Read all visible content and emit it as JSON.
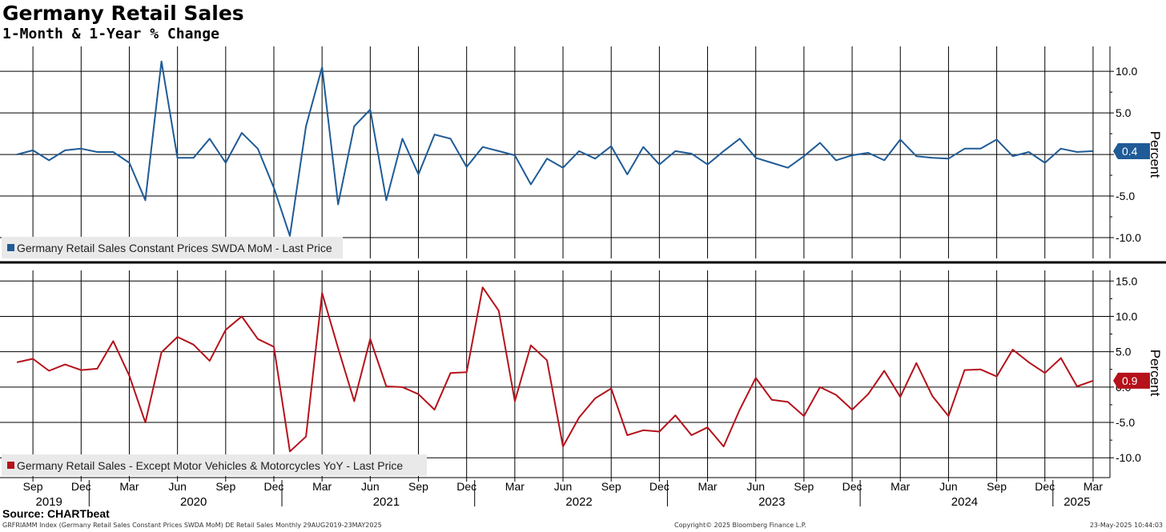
{
  "header": {
    "title": "Germany Retail Sales",
    "subtitle": "1-Month & 1-Year % Change"
  },
  "footer": {
    "source": "Source: CHARTbeat",
    "index_note": "GRFRIAMM Index (Germany Retail Sales Constant Prices SWDA MoM) DE Retail Sales  Monthly 29AUG2019-23MAY2025",
    "copyright": "Copyright© 2025 Bloomberg Finance L.P.",
    "timestamp": "23-May-2025 10:44:03"
  },
  "colors": {
    "mom_series": "#1f5b96",
    "yoy_series": "#b5121b",
    "grid": "#000000"
  },
  "chart_data": [
    {
      "type": "line",
      "series": [
        {
          "name": "Germany Retail Sales Constant Prices SWDA MoM - Last Price",
          "last_value_label": "0.4",
          "values": [
            0.0,
            0.5,
            -0.7,
            0.5,
            0.7,
            0.3,
            0.3,
            -1.0,
            -5.5,
            11.2,
            -0.4,
            -0.4,
            1.9,
            -1.0,
            2.6,
            0.7,
            -4.0,
            -9.8,
            3.4,
            10.5,
            -6.0,
            3.4,
            5.4,
            -5.5,
            1.9,
            -2.4,
            2.4,
            1.9,
            -1.5,
            0.9,
            0.4,
            -0.1,
            -3.6,
            -0.5,
            -1.6,
            0.4,
            -0.5,
            1.0,
            -2.4,
            0.9,
            -1.2,
            0.4,
            0.1,
            -1.2,
            0.4,
            1.9,
            -0.4,
            -1.0,
            -1.6,
            -0.2,
            1.4,
            -0.7,
            -0.1,
            0.2,
            -0.7,
            1.8,
            -0.2,
            -0.4,
            -0.5,
            0.7,
            0.7,
            1.8,
            -0.2,
            0.3,
            -1.0,
            0.7,
            0.3,
            0.4
          ]
        }
      ],
      "y_ticks": [
        "10.0",
        "5.0",
        "0.0",
        "-5.0",
        "-10.0"
      ],
      "ylabel": "Percent",
      "ylim": [
        -12.5,
        13.0
      ],
      "grid": true,
      "legend": "bottom-left"
    },
    {
      "type": "line",
      "series": [
        {
          "name": "Germany Retail Sales - Except Motor Vehicles & Motorcycles YoY - Last Price",
          "last_value_label": "0.9",
          "values": [
            3.5,
            4.0,
            2.3,
            3.2,
            2.4,
            2.6,
            6.5,
            1.6,
            -5.0,
            4.9,
            7.1,
            6.0,
            3.7,
            8.1,
            10.0,
            6.8,
            5.7,
            -9.1,
            -7.0,
            13.3,
            5.5,
            -2.0,
            6.8,
            0.1,
            0.0,
            -1.0,
            -3.2,
            2.0,
            2.1,
            14.1,
            10.8,
            -2.0,
            5.9,
            3.8,
            -8.4,
            -4.3,
            -1.6,
            -0.2,
            -6.8,
            -6.1,
            -6.3,
            -4.0,
            -6.8,
            -5.7,
            -8.4,
            -3.2,
            1.3,
            -1.8,
            -2.1,
            -4.1,
            0.0,
            -1.1,
            -3.2,
            -1.0,
            2.3,
            -1.4,
            3.4,
            -1.3,
            -4.1,
            2.4,
            2.5,
            1.5,
            5.3,
            3.5,
            2.0,
            4.1,
            0.1,
            0.9
          ]
        }
      ],
      "y_ticks": [
        "15.0",
        "10.0",
        "5.0",
        "0.0",
        "-5.0",
        "-10.0"
      ],
      "ylabel": "Percent",
      "ylim": [
        -12.8,
        16.5
      ],
      "grid": true,
      "legend": "bottom-left"
    }
  ],
  "x_axis": {
    "start": "2019-08",
    "end": "2025-03",
    "months": [
      {
        "label": "Sep",
        "date": "2019-09"
      },
      {
        "label": "Dec",
        "date": "2019-12"
      },
      {
        "label": "Mar",
        "date": "2020-03"
      },
      {
        "label": "Jun",
        "date": "2020-06"
      },
      {
        "label": "Sep",
        "date": "2020-09"
      },
      {
        "label": "Dec",
        "date": "2020-12"
      },
      {
        "label": "Mar",
        "date": "2021-03"
      },
      {
        "label": "Jun",
        "date": "2021-06"
      },
      {
        "label": "Sep",
        "date": "2021-09"
      },
      {
        "label": "Dec",
        "date": "2021-12"
      },
      {
        "label": "Mar",
        "date": "2022-03"
      },
      {
        "label": "Jun",
        "date": "2022-06"
      },
      {
        "label": "Sep",
        "date": "2022-09"
      },
      {
        "label": "Dec",
        "date": "2022-12"
      },
      {
        "label": "Mar",
        "date": "2023-03"
      },
      {
        "label": "Jun",
        "date": "2023-06"
      },
      {
        "label": "Sep",
        "date": "2023-09"
      },
      {
        "label": "Dec",
        "date": "2023-12"
      },
      {
        "label": "Mar",
        "date": "2024-03"
      },
      {
        "label": "Jun",
        "date": "2024-06"
      },
      {
        "label": "Sep",
        "date": "2024-09"
      },
      {
        "label": "Dec",
        "date": "2024-12"
      },
      {
        "label": "Mar",
        "date": "2025-03"
      }
    ],
    "years": [
      {
        "label": "2019",
        "date": "2019-10"
      },
      {
        "label": "2020",
        "date": "2020-07"
      },
      {
        "label": "2021",
        "date": "2021-07"
      },
      {
        "label": "2022",
        "date": "2022-07"
      },
      {
        "label": "2023",
        "date": "2023-07"
      },
      {
        "label": "2024",
        "date": "2024-07"
      },
      {
        "label": "2025",
        "date": "2025-02"
      }
    ],
    "year_dividers": [
      "2020-01",
      "2021-01",
      "2022-01",
      "2023-01",
      "2024-01",
      "2025-01"
    ]
  }
}
